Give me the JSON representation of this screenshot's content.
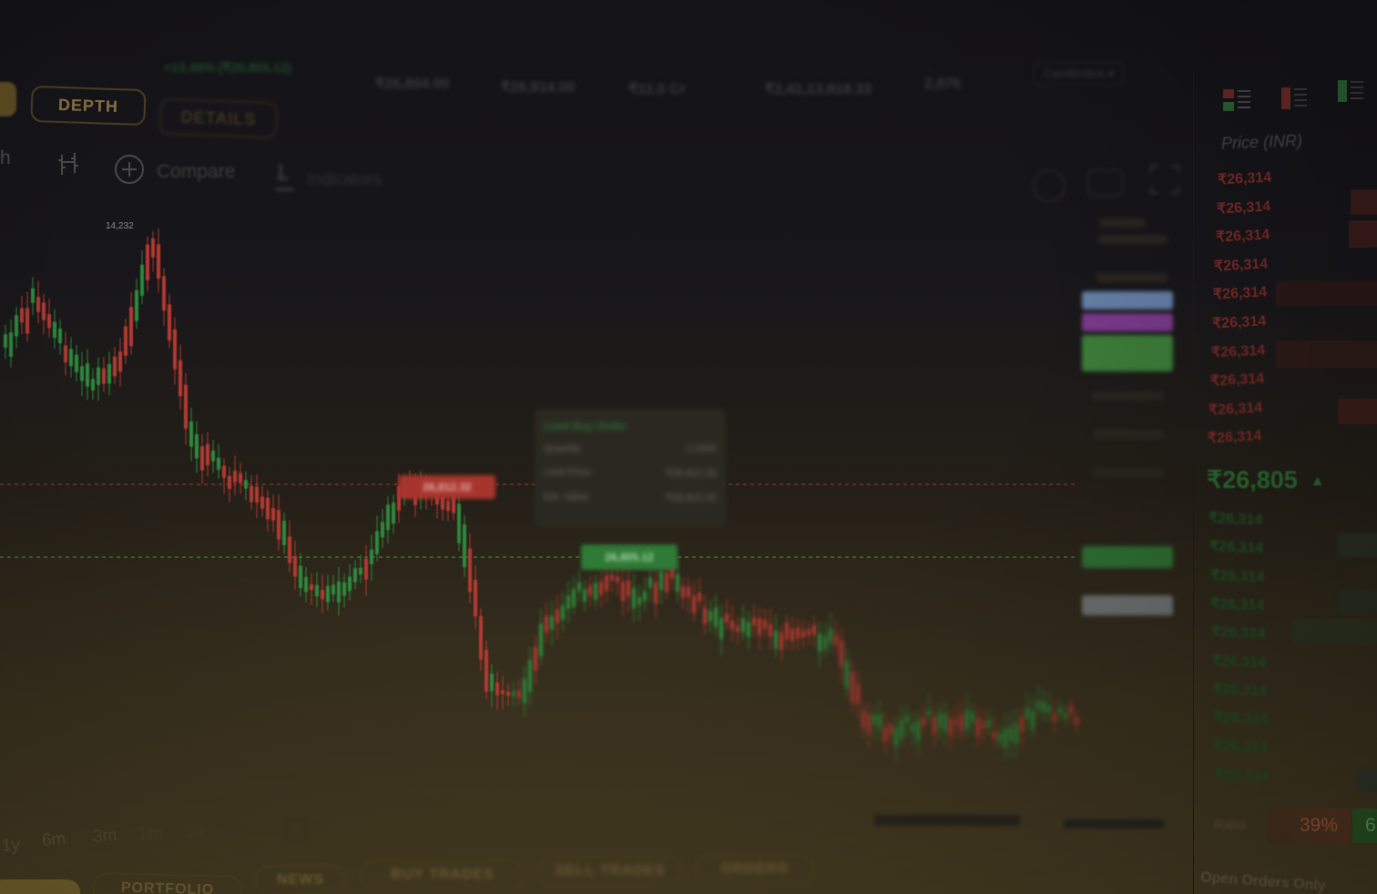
{
  "header": {
    "change": "+13.49% (₹26,805.12)",
    "stat_1": "₹26,804.00",
    "stat_2": "₹26,914.00",
    "stat_3": "₹11.0 Cr",
    "stat_4": "₹2,41,13,818.33",
    "stat_5": "2,876",
    "dropdown_label": "Candlestick"
  },
  "tabs": {
    "depth": "DEPTH",
    "details": "DETAILS"
  },
  "toolbar": {
    "compare_label": "Compare",
    "indicators_label": "Indicators"
  },
  "chart": {
    "high_label": "14,232",
    "sell_tag": "26,812.32",
    "buy_tag": "26,805.12",
    "tooltip_title": "Limit Buy Order",
    "tooltip_rows": [
      {
        "label": "Quantity",
        "value": "1.0000"
      },
      {
        "label": "Limit Price",
        "value": "₹26,812.32"
      },
      {
        "label": "Est. Value",
        "value": "₹26,812.32"
      }
    ]
  },
  "orderbook": {
    "header": "Price (INR)",
    "asks": [
      "₹26,314",
      "₹26,314",
      "₹26,314",
      "₹26,314",
      "₹26,314",
      "₹26,314",
      "₹26,314",
      "₹26,314",
      "₹26,314",
      "₹26,314"
    ],
    "last_price": "₹26,805",
    "last_direction": "up",
    "bids": [
      "₹26,314",
      "₹26,314",
      "₹26,314",
      "₹26,314",
      "₹26,314",
      "₹26,314",
      "₹26,314",
      "₹26,314",
      "₹26,314",
      "₹26,314"
    ],
    "ratio_label": "Ratio",
    "sell_ratio": "39%",
    "buy_ratio": "6"
  },
  "ranges": [
    "1y",
    "6m",
    "3m",
    "1m",
    "5d",
    "1d"
  ],
  "bottom_tabs": [
    "PORTFOLIO",
    "NEWS",
    "BUY TRADES",
    "SELL TRADES",
    "ORDERS"
  ],
  "open_orders_label": "Open Orders Only",
  "colors": {
    "up": "#2e8a3c",
    "down": "#b43a32",
    "accent": "#8a7444"
  }
}
